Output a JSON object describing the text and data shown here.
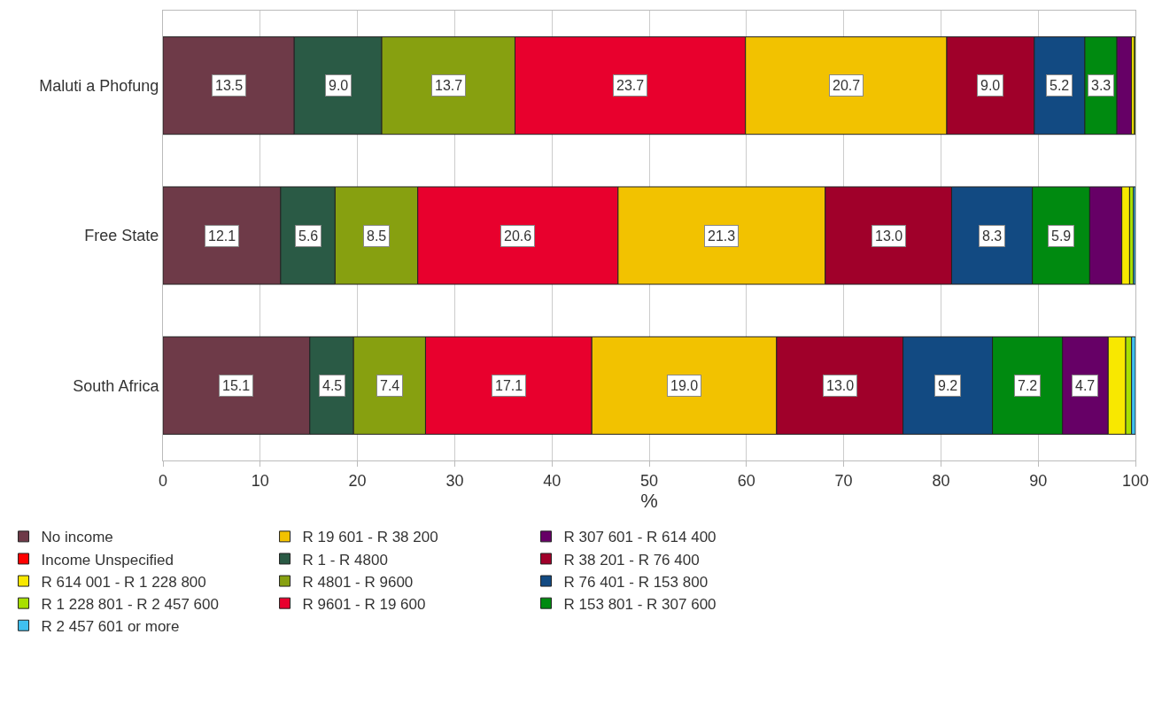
{
  "chart_data": {
    "type": "bar",
    "orientation": "horizontal",
    "stacked": true,
    "categories": [
      "Maluti a Phofung",
      "Free State",
      "South Africa"
    ],
    "xlabel": "%",
    "xlim": [
      0,
      100
    ],
    "xticks": [
      0,
      10,
      20,
      30,
      40,
      50,
      60,
      70,
      80,
      90,
      100
    ],
    "grid": "x",
    "legend": "bottom",
    "series": [
      {
        "name": "No income",
        "color": "#6e3a48",
        "values": [
          13.5,
          12.1,
          15.1
        ],
        "value_labels": [
          "13.5",
          "12.1",
          "15.1"
        ]
      },
      {
        "name": "R 1 - R 4800",
        "color": "#2a5a45",
        "values": [
          9.0,
          5.6,
          4.5
        ],
        "value_labels": [
          "9.0",
          "5.6",
          "4.5"
        ]
      },
      {
        "name": "R 4801 - R 9600",
        "color": "#87a010",
        "values": [
          13.7,
          8.5,
          7.4
        ],
        "value_labels": [
          "13.7",
          "8.5",
          "7.4"
        ]
      },
      {
        "name": "R 9601 - R 19 600",
        "color": "#e8002d",
        "values": [
          23.7,
          20.6,
          17.1
        ],
        "value_labels": [
          "23.7",
          "20.6",
          "17.1"
        ]
      },
      {
        "name": "R 19 601 - R 38 200",
        "color": "#f2c200",
        "values": [
          20.7,
          21.3,
          19.0
        ],
        "value_labels": [
          "20.7",
          "21.3",
          "19.0"
        ]
      },
      {
        "name": "R 38 201 - R 76 400",
        "color": "#a0002a",
        "values": [
          9.0,
          13.0,
          13.0
        ],
        "value_labels": [
          "9.0",
          "13.0",
          "13.0"
        ]
      },
      {
        "name": "R 76 401 - R 153 800",
        "color": "#124a82",
        "values": [
          5.2,
          8.3,
          9.2
        ],
        "value_labels": [
          "5.2",
          "8.3",
          "9.2"
        ]
      },
      {
        "name": "R 153 801 - R 307 600",
        "color": "#008a10",
        "values": [
          3.3,
          5.9,
          7.2
        ],
        "value_labels": [
          "3.3",
          "5.9",
          "7.2"
        ]
      },
      {
        "name": "R 307 601 - R 614 400",
        "color": "#660066",
        "values": [
          1.5,
          3.3,
          4.7
        ],
        "value_labels": [
          null,
          null,
          "4.7"
        ]
      },
      {
        "name": "R 614 001 - R 1 228 800",
        "color": "#f8e800",
        "values": [
          0.3,
          0.8,
          1.8
        ],
        "value_labels": [
          null,
          null,
          null
        ]
      },
      {
        "name": "R 1 228 801 - R 2 457 600",
        "color": "#a8e000",
        "values": [
          0.1,
          0.4,
          0.6
        ],
        "value_labels": [
          null,
          null,
          null
        ]
      },
      {
        "name": "R 2 457 601 or more",
        "color": "#40c0f0",
        "values": [
          null,
          0.2,
          0.4
        ],
        "value_labels": [
          null,
          null,
          null
        ]
      },
      {
        "name": "Income Unspecified",
        "color": "#ff0000",
        "values": [
          null,
          null,
          null
        ],
        "value_labels": [
          null,
          null,
          null
        ]
      }
    ]
  }
}
